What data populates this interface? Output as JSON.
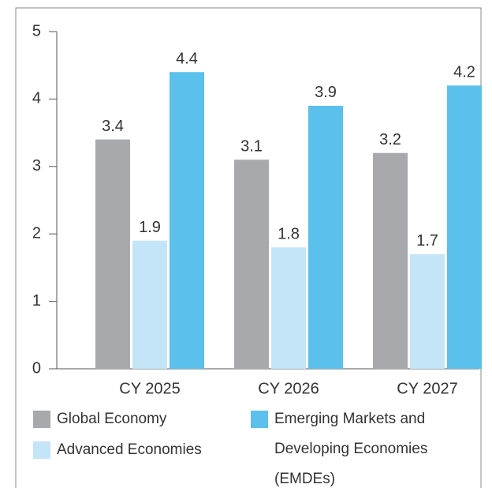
{
  "chart_data": {
    "type": "bar",
    "categories": [
      "CY 2025",
      "CY 2026",
      "CY 2027"
    ],
    "series": [
      {
        "name": "Global Economy",
        "color": "#a7a9ac",
        "values": [
          3.4,
          3.1,
          3.2
        ]
      },
      {
        "name": "Advanced Economies",
        "color": "#c4e4f7",
        "values": [
          1.9,
          1.8,
          1.7
        ]
      },
      {
        "name": "Emerging Markets and Developing Economies (EMDEs)",
        "color": "#5bc0eb",
        "values": [
          4.4,
          3.9,
          4.2
        ]
      }
    ],
    "ylim": [
      0,
      5
    ],
    "yticks": [
      0,
      1,
      2,
      3,
      4,
      5
    ],
    "grid": false
  }
}
